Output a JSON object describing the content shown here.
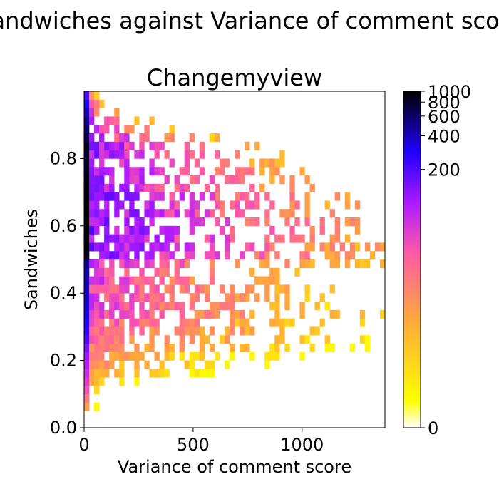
{
  "chart_data": {
    "type": "heatmap",
    "suptitle": "Sandwiches against Variance of comment score",
    "title": "Changemyview",
    "xlabel": "Variance of comment score",
    "ylabel": "Sandwiches",
    "xlim": [
      0,
      1380
    ],
    "ylim": [
      0,
      1.0
    ],
    "xticks": [
      0,
      500,
      1000
    ],
    "yticks": [
      0.0,
      0.2,
      0.4,
      0.6,
      0.8
    ],
    "bins": {
      "x_width": 23,
      "y_width": 0.025,
      "columns": 60,
      "rows": 40
    },
    "colorbar": {
      "scale": "symlog",
      "min": 0,
      "max": 1000,
      "ticks": [
        0,
        200,
        400,
        600,
        800,
        1000
      ],
      "colormap": "gnuplot2_r",
      "stops": [
        "#ffffff",
        "#ffff00",
        "#ff8c3a",
        "#ff4fa8",
        "#b31cff",
        "#1f00ff",
        "#000000"
      ]
    },
    "profile": {
      "y_centers": [
        0.0125,
        0.0375,
        0.0625,
        0.0875,
        0.1125,
        0.1375,
        0.1625,
        0.1875,
        0.2125,
        0.2375,
        0.2625,
        0.2875,
        0.3125,
        0.3375,
        0.3625,
        0.3875,
        0.4125,
        0.4375,
        0.4625,
        0.4875,
        0.5125,
        0.5375,
        0.5625,
        0.5875,
        0.6125,
        0.6375,
        0.6625,
        0.6875,
        0.7125,
        0.7375,
        0.7625,
        0.7875,
        0.8125,
        0.8375,
        0.8625,
        0.8875,
        0.9125,
        0.9375,
        0.9625,
        0.9875
      ],
      "first_column_counts": [
        0,
        0,
        10,
        20,
        40,
        55,
        70,
        90,
        110,
        150,
        200,
        250,
        280,
        320,
        350,
        380,
        400,
        420,
        450,
        480,
        900,
        950,
        1000,
        1000,
        1000,
        1000,
        1000,
        950,
        900,
        900,
        850,
        800,
        800,
        850,
        700,
        600,
        500,
        400,
        300,
        200
      ],
      "max_x_extent": [
        0,
        0,
        60,
        60,
        120,
        280,
        700,
        850,
        1000,
        1300,
        1380,
        1380,
        1280,
        1380,
        1300,
        1200,
        1200,
        1100,
        1100,
        1380,
        1380,
        1380,
        1300,
        1380,
        1380,
        1250,
        1250,
        1200,
        1100,
        1050,
        1000,
        900,
        900,
        800,
        600,
        400,
        300,
        180,
        100,
        60
      ]
    },
    "grid": false,
    "legend": "colorbar-right"
  }
}
